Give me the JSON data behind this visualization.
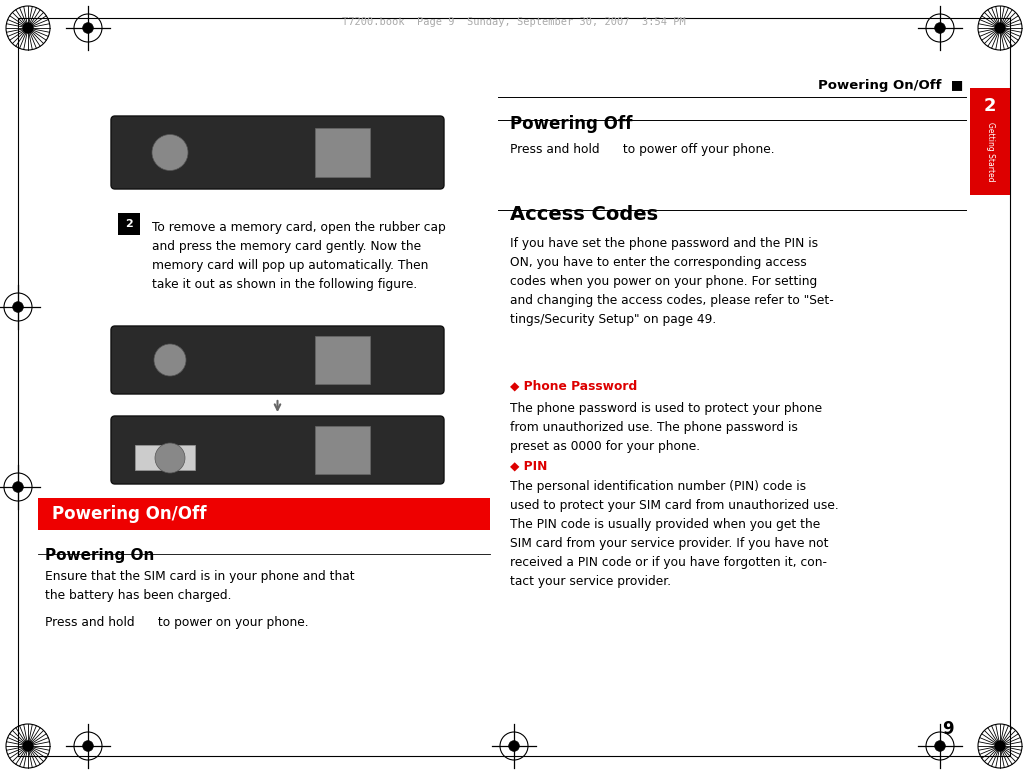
{
  "bg_color": "#ffffff",
  "header_text": "T7200.book  Page 9  Sunday, September 30, 2007  3:54 PM",
  "top_right_title": "Powering On/Off",
  "red_tab_color": "#dd0000",
  "red_tab_text": "2",
  "red_tab_label": "Getting Started",
  "red_banner_text": "Powering On/Off",
  "red_banner_color": "#ee0000",
  "red_banner_text_color": "#ffffff",
  "bullet_color": "#dd0000",
  "page_num": "9",
  "powering_on_heading": "Powering On",
  "powering_on_body1": "Ensure that the SIM card is in your phone and that\nthe battery has been charged.",
  "powering_on_body2": "Press and hold      to power on your phone.",
  "powering_off_heading": "Powering Off",
  "powering_off_body": "Press and hold      to power off your phone.",
  "access_codes_heading": "Access Codes",
  "access_codes_body": "If you have set the phone password and the PIN is\nON, you have to enter the corresponding access\ncodes when you power on your phone. For setting\nand changing the access codes, please refer to \"Set-\ntings/Security Setup\" on page 49.",
  "phone_password_heading": "Phone Password",
  "phone_password_body": "The phone password is used to protect your phone\nfrom unauthorized use. The phone password is\npreset as 0000 for your phone.",
  "pin_heading": "PIN",
  "pin_body": "The personal identification number (PIN) code is\nused to protect your SIM card from unauthorized use.\nThe PIN code is usually provided when you get the\nSIM card from your service provider. If you have not\nreceived a PIN code or if you have forgotten it, con-\ntact your service provider.",
  "step2_body": "To remove a memory card, open the rubber cap\nand press the memory card gently. Now the\nmemory card will pop up automatically. Then\ntake it out as shown in the following figure."
}
